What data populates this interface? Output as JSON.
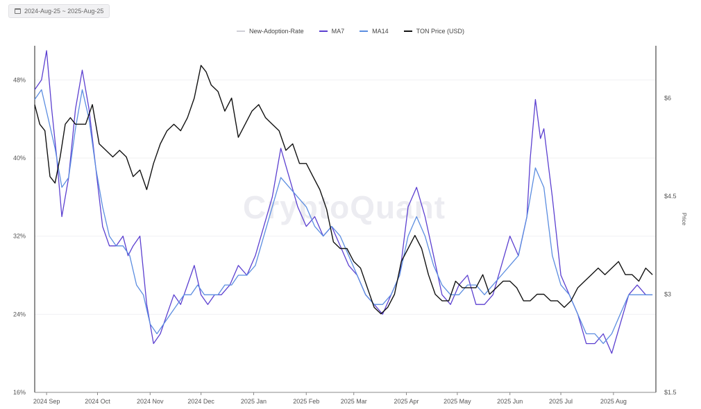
{
  "date_range": "2024-Aug-25 ~ 2025-Aug-25",
  "watermark": "CryptoQuant",
  "chart_data": {
    "type": "line",
    "y_left": {
      "ticks": [
        "16%",
        "24%",
        "32%",
        "40%",
        "48%"
      ],
      "values": [
        16,
        24,
        32,
        40,
        48
      ],
      "range": [
        16,
        51.5
      ]
    },
    "y_right": {
      "label": "Price",
      "ticks": [
        "$1.5",
        "$3",
        "$4.5",
        "$6"
      ],
      "values": [
        1.5,
        3,
        4.5,
        6
      ],
      "range": [
        1.5,
        6.8
      ]
    },
    "x_ticks": [
      "2024 Sep",
      "2024 Oct",
      "2024 Nov",
      "2024 Dec",
      "2025 Jan",
      "2025 Feb",
      "2025 Mar",
      "2025 Apr",
      "2025 May",
      "2025 Jun",
      "2025 Jul",
      "2025 Aug"
    ],
    "x_tick_days": [
      7,
      37,
      68,
      98,
      129,
      160,
      188,
      219,
      249,
      280,
      310,
      341
    ],
    "x_range": [
      0,
      366
    ],
    "legend": [
      {
        "name": "New-Adoption-Rate",
        "color": "#cfcfd6"
      },
      {
        "name": "MA7",
        "color": "#5b3fd0"
      },
      {
        "name": "MA14",
        "color": "#5b8de0"
      },
      {
        "name": "TON Price (USD)",
        "color": "#111111"
      }
    ],
    "series": [
      {
        "name": "MA7",
        "axis": "left",
        "x": [
          0,
          4,
          7,
          10,
          13,
          16,
          20,
          24,
          28,
          32,
          36,
          40,
          44,
          48,
          52,
          55,
          58,
          62,
          66,
          70,
          74,
          78,
          82,
          86,
          90,
          94,
          98,
          102,
          106,
          110,
          115,
          120,
          125,
          130,
          135,
          140,
          145,
          150,
          155,
          160,
          165,
          170,
          175,
          180,
          185,
          190,
          195,
          200,
          205,
          210,
          215,
          220,
          225,
          230,
          235,
          240,
          245,
          250,
          255,
          260,
          265,
          270,
          275,
          280,
          285,
          290,
          292,
          295,
          298,
          300,
          305,
          310,
          315,
          320,
          325,
          330,
          335,
          340,
          345,
          350,
          355,
          360,
          364
        ],
        "y": [
          47,
          48,
          51,
          45,
          40,
          34,
          38,
          45,
          49,
          45,
          39,
          33,
          31,
          31,
          32,
          30,
          31,
          32,
          25,
          21,
          22,
          24,
          26,
          25,
          27,
          29,
          26,
          25,
          26,
          26,
          27,
          29,
          28,
          30,
          33,
          36,
          41,
          38,
          35,
          33,
          34,
          32,
          33,
          31,
          29,
          28,
          26,
          25,
          24,
          26,
          28,
          35,
          37,
          34,
          30,
          26,
          25,
          27,
          28,
          25,
          25,
          26,
          29,
          32,
          30,
          34,
          40,
          46,
          42,
          43,
          36,
          28,
          26,
          24,
          21,
          21,
          22,
          20,
          23,
          26,
          27,
          26,
          26
        ]
      },
      {
        "name": "MA14",
        "axis": "left",
        "x": [
          0,
          4,
          8,
          12,
          16,
          20,
          24,
          28,
          32,
          36,
          40,
          44,
          48,
          52,
          56,
          60,
          64,
          68,
          72,
          76,
          80,
          84,
          88,
          92,
          96,
          100,
          104,
          108,
          112,
          116,
          120,
          125,
          130,
          135,
          140,
          145,
          150,
          155,
          160,
          165,
          170,
          175,
          180,
          185,
          190,
          195,
          200,
          205,
          210,
          215,
          220,
          225,
          230,
          235,
          240,
          245,
          250,
          255,
          260,
          265,
          270,
          275,
          280,
          285,
          290,
          295,
          300,
          305,
          310,
          315,
          320,
          325,
          330,
          335,
          340,
          345,
          350,
          355,
          360,
          364
        ],
        "y": [
          46,
          47,
          44,
          41,
          37,
          38,
          43,
          47,
          44,
          39,
          35,
          32,
          31,
          31,
          30,
          27,
          26,
          23,
          22,
          23,
          24,
          25,
          26,
          26,
          27,
          26,
          26,
          26,
          27,
          27,
          28,
          28,
          29,
          32,
          35,
          38,
          37,
          36,
          35,
          33,
          32,
          33,
          32,
          30,
          28,
          26,
          25,
          25,
          26,
          28,
          32,
          34,
          32,
          29,
          27,
          26,
          26,
          27,
          27,
          26,
          27,
          28,
          29,
          30,
          34,
          39,
          37,
          30,
          27,
          26,
          24,
          22,
          22,
          21,
          22,
          24,
          26,
          26,
          26,
          26
        ]
      },
      {
        "name": "TON Price (USD)",
        "axis": "right",
        "x": [
          0,
          3,
          6,
          9,
          12,
          15,
          18,
          21,
          24,
          27,
          30,
          34,
          38,
          42,
          46,
          50,
          54,
          58,
          62,
          66,
          70,
          74,
          78,
          82,
          86,
          90,
          94,
          98,
          101,
          104,
          108,
          112,
          116,
          120,
          124,
          128,
          132,
          136,
          140,
          144,
          148,
          152,
          156,
          160,
          164,
          168,
          172,
          176,
          180,
          184,
          188,
          192,
          196,
          200,
          204,
          208,
          212,
          216,
          220,
          224,
          228,
          232,
          236,
          240,
          244,
          248,
          252,
          256,
          260,
          264,
          268,
          272,
          276,
          280,
          284,
          288,
          292,
          296,
          300,
          304,
          308,
          312,
          316,
          320,
          324,
          328,
          332,
          336,
          340,
          344,
          348,
          352,
          356,
          360,
          364
        ],
        "y": [
          5.9,
          5.6,
          5.5,
          4.8,
          4.7,
          5.1,
          5.6,
          5.7,
          5.6,
          5.6,
          5.6,
          5.9,
          5.3,
          5.2,
          5.1,
          5.2,
          5.1,
          4.8,
          4.9,
          4.6,
          5.0,
          5.3,
          5.5,
          5.6,
          5.5,
          5.7,
          6.0,
          6.5,
          6.4,
          6.2,
          6.1,
          5.8,
          6.0,
          5.4,
          5.6,
          5.8,
          5.9,
          5.7,
          5.6,
          5.5,
          5.2,
          5.3,
          5.0,
          5.0,
          4.8,
          4.6,
          4.3,
          3.8,
          3.7,
          3.7,
          3.5,
          3.4,
          3.1,
          2.8,
          2.7,
          2.8,
          3.0,
          3.5,
          3.7,
          3.9,
          3.7,
          3.3,
          3.0,
          2.9,
          2.9,
          3.2,
          3.1,
          3.1,
          3.1,
          3.3,
          3.0,
          3.1,
          3.2,
          3.2,
          3.1,
          2.9,
          2.9,
          3.0,
          3.0,
          2.9,
          2.9,
          2.8,
          2.9,
          3.1,
          3.2,
          3.3,
          3.4,
          3.3,
          3.4,
          3.5,
          3.3,
          3.3,
          3.2,
          3.4,
          3.3
        ]
      }
    ]
  }
}
